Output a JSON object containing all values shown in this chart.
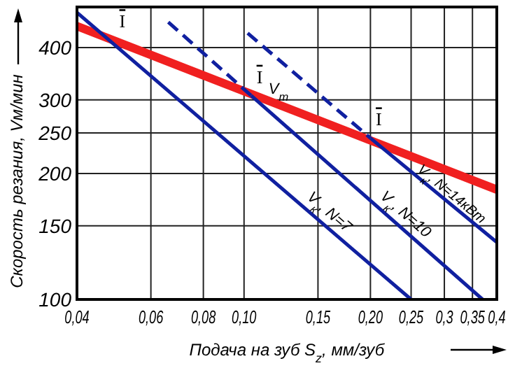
{
  "chart_data": {
    "type": "line",
    "xlabel": "Подача на зуб S$_{z}$, мм/зуб",
    "ylabel": "Скорость резания, Vм/мин",
    "log": "xy",
    "grid": true,
    "xlim": [
      0.04,
      0.4
    ],
    "ylim": [
      100,
      500
    ],
    "xticks": [
      {
        "value": 0.04,
        "label": "0,04"
      },
      {
        "value": 0.06,
        "label": "0,06"
      },
      {
        "value": 0.08,
        "label": "0,08"
      },
      {
        "value": 0.1,
        "label": "0,10"
      },
      {
        "value": 0.15,
        "label": "0,15"
      },
      {
        "value": 0.2,
        "label": "0,20"
      },
      {
        "value": 0.25,
        "label": "0,25"
      },
      {
        "value": 0.3,
        "label": "0,3"
      },
      {
        "value": 0.35,
        "label": "0,35"
      },
      {
        "value": 0.4,
        "label": "0,4"
      }
    ],
    "yticks": [
      100,
      150,
      200,
      250,
      300,
      400
    ],
    "series": [
      {
        "name": "V$_{т}$",
        "color": "#f02020",
        "x": [
          0.04,
          0.4
        ],
        "values": [
          450,
          183
        ],
        "line_style": "solid"
      },
      {
        "name": "V$_{к}$, N=7",
        "color": "#1020a0",
        "x": [
          0.04,
          0.25
        ],
        "values": [
          485,
          100
        ],
        "line_style": "solid"
      },
      {
        "color": "#1020a0",
        "x": [
          0.066,
          0.104
        ],
        "values": [
          460,
          307
        ],
        "line_style": "dashed"
      },
      {
        "name": "V$_{к}$, N=10",
        "color": "#1020a0",
        "x": [
          0.104,
          0.37
        ],
        "values": [
          307,
          100
        ],
        "line_style": "solid"
      },
      {
        "color": "#1020a0",
        "x": [
          0.102,
          0.2
        ],
        "values": [
          433,
          243
        ],
        "line_style": "dashed"
      },
      {
        "name": "V$_{к}$, N=14кВт",
        "color": "#1020a0",
        "x": [
          0.2,
          0.4
        ],
        "values": [
          243,
          137
        ],
        "line_style": "solid"
      }
    ],
    "annotations": [
      {
        "text": "I",
        "x": 0.049,
        "y": 417
      },
      {
        "text": "I",
        "x": 0.104,
        "y": 307
      },
      {
        "text": "I",
        "x": 0.2,
        "y": 243
      }
    ]
  }
}
